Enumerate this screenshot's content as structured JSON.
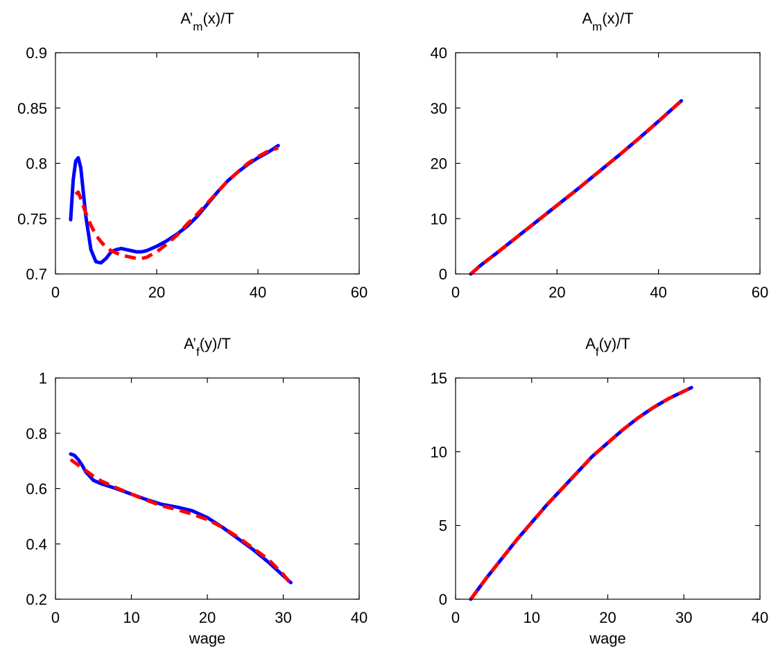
{
  "chart_data": [
    {
      "type": "line",
      "title": {
        "base": "A’",
        "sub": "m",
        "rest": "(x)/T"
      },
      "xlabel": "",
      "xlim": [
        0,
        60
      ],
      "ylim": [
        0.7,
        0.9
      ],
      "xticks": [
        0,
        20,
        40,
        60
      ],
      "yticks": [
        0.7,
        0.75,
        0.8,
        0.85,
        0.9
      ],
      "xtick_labels": [
        "0",
        "20",
        "40",
        "60"
      ],
      "ytick_labels": [
        "0.7",
        "0.75",
        "0.8",
        "0.85",
        "0.9"
      ],
      "grid": false,
      "series": [
        {
          "color": "#0000ff",
          "style": "solid",
          "x": [
            3,
            3.5,
            4,
            4.5,
            5,
            5.5,
            6,
            7,
            8,
            9,
            10,
            11,
            12,
            13,
            14,
            15,
            16,
            17,
            18,
            20,
            22,
            24,
            26,
            28,
            30,
            32,
            34,
            36,
            38,
            40,
            42,
            44
          ],
          "y": [
            0.749,
            0.785,
            0.802,
            0.805,
            0.796,
            0.774,
            0.752,
            0.722,
            0.711,
            0.71,
            0.714,
            0.72,
            0.722,
            0.723,
            0.722,
            0.721,
            0.72,
            0.72,
            0.721,
            0.725,
            0.73,
            0.736,
            0.743,
            0.752,
            0.763,
            0.774,
            0.784,
            0.792,
            0.799,
            0.805,
            0.81,
            0.816
          ]
        },
        {
          "color": "#ff0000",
          "style": "dashed",
          "x": [
            4,
            4.5,
            5,
            6,
            7,
            8,
            9,
            10,
            11,
            12,
            13,
            14,
            15,
            16,
            17,
            18,
            20,
            22,
            24,
            26,
            28,
            30,
            32,
            34,
            36,
            38,
            40,
            42,
            44
          ],
          "y": [
            0.772,
            0.774,
            0.768,
            0.755,
            0.744,
            0.735,
            0.729,
            0.724,
            0.721,
            0.719,
            0.717,
            0.716,
            0.715,
            0.714,
            0.714,
            0.715,
            0.72,
            0.727,
            0.735,
            0.745,
            0.754,
            0.764,
            0.774,
            0.784,
            0.792,
            0.8,
            0.806,
            0.811,
            0.814
          ]
        }
      ]
    },
    {
      "type": "line",
      "title": {
        "base": "A",
        "sub": "m",
        "rest": "(x)/T"
      },
      "xlabel": "",
      "xlim": [
        0,
        60
      ],
      "ylim": [
        0,
        40
      ],
      "xticks": [
        0,
        20,
        40,
        60
      ],
      "yticks": [
        0,
        10,
        20,
        30,
        40
      ],
      "xtick_labels": [
        "0",
        "20",
        "40",
        "60"
      ],
      "ytick_labels": [
        "0",
        "10",
        "20",
        "30",
        "40"
      ],
      "grid": false,
      "series": [
        {
          "color": "#0000ff",
          "style": "solid",
          "x": [
            3,
            5,
            8,
            12,
            16,
            20,
            24,
            28,
            32,
            36,
            40,
            44.5
          ],
          "y": [
            0,
            1.6,
            3.7,
            6.6,
            9.5,
            12.4,
            15.3,
            18.3,
            21.3,
            24.4,
            27.6,
            31.3
          ]
        },
        {
          "color": "#ff0000",
          "style": "dashed",
          "x": [
            3,
            5,
            8,
            12,
            16,
            20,
            24,
            28,
            32,
            36,
            40,
            44.5
          ],
          "y": [
            0,
            1.6,
            3.7,
            6.6,
            9.5,
            12.4,
            15.3,
            18.3,
            21.3,
            24.4,
            27.6,
            31.3
          ]
        }
      ]
    },
    {
      "type": "line",
      "title": {
        "base": "A’",
        "sub": "f",
        "rest": "(y)/T"
      },
      "xlabel": "wage",
      "xlim": [
        0,
        40
      ],
      "ylim": [
        0.2,
        1
      ],
      "xticks": [
        0,
        10,
        20,
        30,
        40
      ],
      "yticks": [
        0.2,
        0.4,
        0.6,
        0.8,
        1
      ],
      "xtick_labels": [
        "0",
        "10",
        "20",
        "30",
        "40"
      ],
      "ytick_labels": [
        "0.2",
        "0.4",
        "0.6",
        "0.8",
        "1"
      ],
      "grid": false,
      "series": [
        {
          "color": "#0000ff",
          "style": "solid",
          "x": [
            2,
            2.5,
            3,
            3.5,
            4,
            5,
            6,
            8,
            10,
            12,
            14,
            16,
            18,
            20,
            22,
            24,
            26,
            28,
            30,
            31
          ],
          "y": [
            0.725,
            0.72,
            0.705,
            0.685,
            0.66,
            0.63,
            0.618,
            0.6,
            0.58,
            0.56,
            0.543,
            0.533,
            0.52,
            0.495,
            0.46,
            0.42,
            0.38,
            0.335,
            0.285,
            0.26
          ]
        },
        {
          "color": "#ff0000",
          "style": "dashed",
          "x": [
            2,
            3,
            4,
            5,
            6,
            8,
            10,
            12,
            14,
            16,
            18,
            20,
            22,
            24,
            26,
            28,
            30,
            31
          ],
          "y": [
            0.705,
            0.685,
            0.665,
            0.645,
            0.628,
            0.603,
            0.58,
            0.558,
            0.538,
            0.524,
            0.508,
            0.488,
            0.46,
            0.425,
            0.385,
            0.345,
            0.29,
            0.255
          ]
        }
      ]
    },
    {
      "type": "line",
      "title": {
        "base": "A",
        "sub": "f",
        "rest": "(y)/T"
      },
      "xlabel": "wage",
      "xlim": [
        0,
        40
      ],
      "ylim": [
        0,
        15
      ],
      "xticks": [
        0,
        10,
        20,
        30,
        40
      ],
      "yticks": [
        0,
        5,
        10,
        15
      ],
      "xtick_labels": [
        "0",
        "10",
        "20",
        "30",
        "40"
      ],
      "ytick_labels": [
        "0",
        "5",
        "10",
        "15"
      ],
      "grid": false,
      "series": [
        {
          "color": "#0000ff",
          "style": "solid",
          "x": [
            2,
            4,
            6,
            8,
            10,
            12,
            14,
            16,
            18,
            20,
            22,
            24,
            26,
            28,
            30,
            31
          ],
          "y": [
            0,
            1.4,
            2.7,
            4.0,
            5.2,
            6.4,
            7.5,
            8.6,
            9.7,
            10.6,
            11.5,
            12.3,
            13.0,
            13.6,
            14.1,
            14.35
          ]
        },
        {
          "color": "#ff0000",
          "style": "dashed",
          "x": [
            2,
            4,
            6,
            8,
            10,
            12,
            14,
            16,
            18,
            20,
            22,
            24,
            26,
            28,
            30,
            31
          ],
          "y": [
            0,
            1.4,
            2.7,
            4.0,
            5.2,
            6.4,
            7.5,
            8.6,
            9.7,
            10.6,
            11.5,
            12.3,
            13.0,
            13.6,
            14.1,
            14.35
          ]
        }
      ]
    }
  ]
}
